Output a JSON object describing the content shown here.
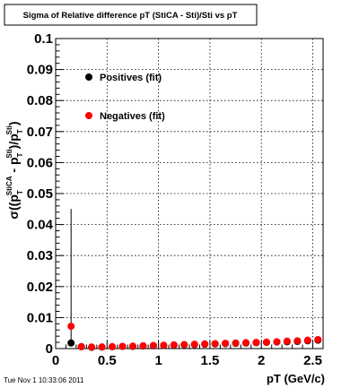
{
  "chart_data": {
    "type": "scatter",
    "title": "Sigma of Relative difference pT (StiCA - Sti)/Sti vs pT",
    "xlabel": "pT (GeV/c)",
    "ylabel": {
      "open": "σ((p",
      "sub1": "T",
      "sup1": "StiCA",
      "mid": " - p",
      "sub2": "T",
      "sup2": "Sti",
      "mid2": ")/p",
      "sub3": "T",
      "sup3": "Sti",
      "close": ")"
    },
    "xlim": [
      0,
      2.6
    ],
    "ylim": [
      0,
      0.1
    ],
    "xticks": [
      0,
      0.5,
      1,
      1.5,
      2,
      2.5
    ],
    "xtick_labels": [
      "0",
      "0.5",
      "1",
      "1.5",
      "2",
      "2.5"
    ],
    "yticks": [
      0,
      0.01,
      0.02,
      0.03,
      0.04,
      0.05,
      0.06,
      0.07,
      0.08,
      0.09,
      0.1
    ],
    "ytick_labels": [
      "0",
      "0.01",
      "0.02",
      "0.03",
      "0.04",
      "0.05",
      "0.06",
      "0.07",
      "0.08",
      "0.09",
      "0.1"
    ],
    "grid": true,
    "legend_position": "top-left",
    "series": [
      {
        "name": "Positives (fit)",
        "color": "#000000",
        "x": [
          0.15,
          0.25,
          0.35,
          0.45,
          0.55,
          0.65,
          0.75,
          0.85,
          0.95,
          1.05,
          1.15,
          1.25,
          1.35,
          1.45,
          1.55,
          1.65,
          1.75,
          1.85,
          1.95,
          2.05,
          2.15,
          2.25,
          2.35,
          2.45,
          2.55
        ],
        "y": [
          0.0018,
          0.0006,
          0.0004,
          0.0005,
          0.0006,
          0.0007,
          0.0007,
          0.0008,
          0.0009,
          0.001,
          0.0011,
          0.0012,
          0.0013,
          0.0014,
          0.0015,
          0.0016,
          0.0017,
          0.0018,
          0.0019,
          0.002,
          0.0021,
          0.0022,
          0.0023,
          0.0025,
          0.0027
        ],
        "err_high": [
          0.045,
          0,
          0,
          0,
          0,
          0,
          0,
          0,
          0,
          0,
          0,
          0,
          0,
          0,
          0,
          0,
          0,
          0,
          0,
          0,
          0,
          0,
          0,
          0,
          0
        ]
      },
      {
        "name": "Negatives (fit)",
        "color": "#ff0000",
        "x": [
          0.15,
          0.25,
          0.35,
          0.45,
          0.55,
          0.65,
          0.75,
          0.85,
          0.95,
          1.05,
          1.15,
          1.25,
          1.35,
          1.45,
          1.55,
          1.65,
          1.75,
          1.85,
          1.95,
          2.05,
          2.15,
          2.25,
          2.35,
          2.45,
          2.55
        ],
        "y": [
          0.0072,
          0.0006,
          0.0005,
          0.0005,
          0.0006,
          0.0007,
          0.0008,
          0.0009,
          0.001,
          0.0011,
          0.0012,
          0.0013,
          0.0014,
          0.0015,
          0.0016,
          0.0017,
          0.0018,
          0.0019,
          0.002,
          0.0021,
          0.0022,
          0.0024,
          0.0025,
          0.0027,
          0.0029
        ]
      }
    ]
  },
  "footer": {
    "timestamp": "Tue Nov  1 10:33:06 2011"
  }
}
